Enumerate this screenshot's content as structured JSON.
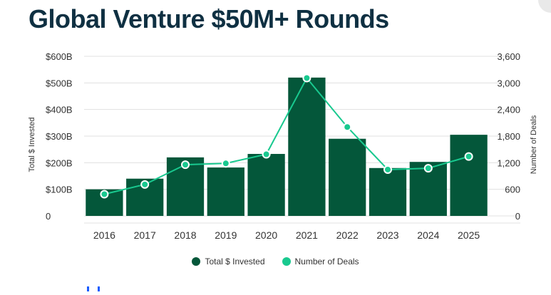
{
  "title": "Global Venture $50M+ Rounds",
  "colors": {
    "bar": "#04573a",
    "line": "#19c98f",
    "grid": "#e0e0e0",
    "text": "#333333"
  },
  "chart_data": {
    "type": "bar",
    "title": "Global Venture $50M+ Rounds",
    "categories": [
      "2016",
      "2017",
      "2018",
      "2019",
      "2020",
      "2021",
      "2022",
      "2023",
      "2024",
      "2025"
    ],
    "series": [
      {
        "name": "Total $ Invested",
        "type": "bar",
        "axis": "left",
        "values": [
          100,
          140,
          220,
          182,
          233,
          520,
          290,
          180,
          203,
          305
        ]
      },
      {
        "name": "Number of Deals",
        "type": "line",
        "axis": "right",
        "values": [
          490,
          710,
          1155,
          1185,
          1390,
          3110,
          2005,
          1045,
          1075,
          1340
        ]
      }
    ],
    "ylabel": "Total $ Invested",
    "y2label": "Number of Deals",
    "ylim": [
      0,
      600
    ],
    "y2lim": [
      0,
      3600
    ],
    "yticks": [
      "0",
      "$100B",
      "$200B",
      "$300B",
      "$400B",
      "$500B",
      "$600B"
    ],
    "y2ticks": [
      "0",
      "600",
      "1,200",
      "1,800",
      "2,400",
      "3,000",
      "3,600"
    ],
    "legend": "bottom-center"
  }
}
